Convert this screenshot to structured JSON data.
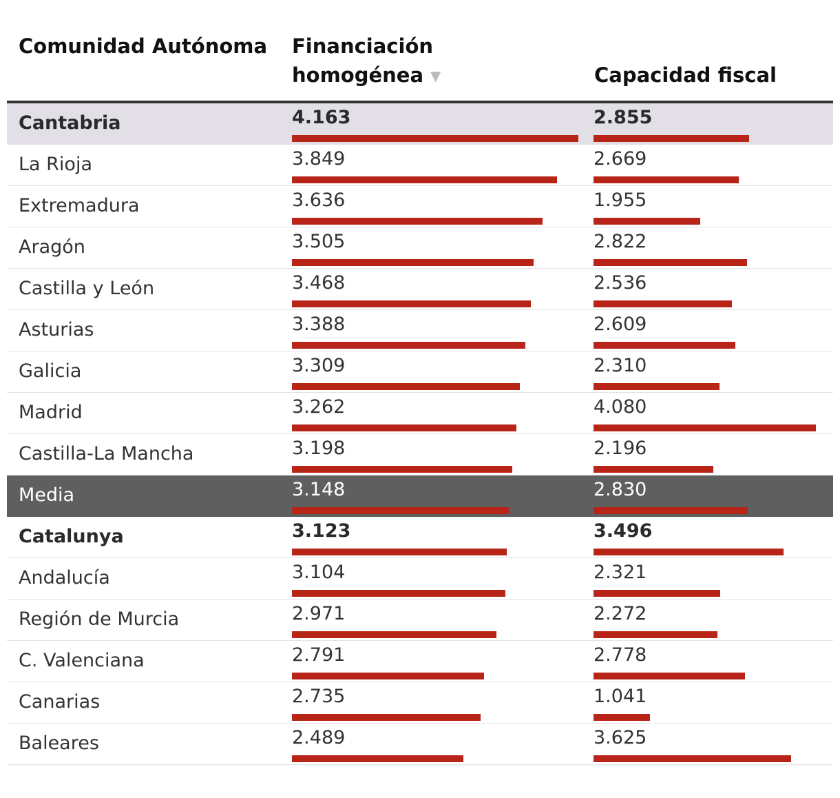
{
  "colors": {
    "bar": "#b82418",
    "highlight_row": "#e2e0e6",
    "media_row": "#5f5f5f"
  },
  "header": {
    "region_label": "Comunidad Autónoma",
    "financiacion_label": "Financiación homogénea",
    "sort_icon": "triangle-down-icon",
    "sort_glyph": "▼",
    "capacidad_label": "Capacidad fiscal"
  },
  "chart_data": {
    "type": "table",
    "columns": [
      "Comunidad Autónoma",
      "Financiación homogénea",
      "Capacidad fiscal"
    ],
    "scale_max": 4.3,
    "rows": [
      {
        "name": "Cantabria",
        "financiacion": 4.163,
        "financiacion_label": "4.163",
        "capacidad": 2.855,
        "capacidad_label": "2.855",
        "style": "highlight"
      },
      {
        "name": "La Rioja",
        "financiacion": 3.849,
        "financiacion_label": "3.849",
        "capacidad": 2.669,
        "capacidad_label": "2.669",
        "style": "normal"
      },
      {
        "name": "Extremadura",
        "financiacion": 3.636,
        "financiacion_label": "3.636",
        "capacidad": 1.955,
        "capacidad_label": "1.955",
        "style": "normal"
      },
      {
        "name": "Aragón",
        "financiacion": 3.505,
        "financiacion_label": "3.505",
        "capacidad": 2.822,
        "capacidad_label": "2.822",
        "style": "normal"
      },
      {
        "name": "Castilla y León",
        "financiacion": 3.468,
        "financiacion_label": "3.468",
        "capacidad": 2.536,
        "capacidad_label": "2.536",
        "style": "normal"
      },
      {
        "name": "Asturias",
        "financiacion": 3.388,
        "financiacion_label": "3.388",
        "capacidad": 2.609,
        "capacidad_label": "2.609",
        "style": "normal"
      },
      {
        "name": "Galicia",
        "financiacion": 3.309,
        "financiacion_label": "3.309",
        "capacidad": 2.31,
        "capacidad_label": "2.310",
        "style": "normal"
      },
      {
        "name": "Madrid",
        "financiacion": 3.262,
        "financiacion_label": "3.262",
        "capacidad": 4.08,
        "capacidad_label": "4.080",
        "style": "normal"
      },
      {
        "name": "Castilla-La Mancha",
        "financiacion": 3.198,
        "financiacion_label": "3.198",
        "capacidad": 2.196,
        "capacidad_label": "2.196",
        "style": "normal"
      },
      {
        "name": "Media",
        "financiacion": 3.148,
        "financiacion_label": "3.148",
        "capacidad": 2.83,
        "capacidad_label": "2.830",
        "style": "media"
      },
      {
        "name": "Catalunya",
        "financiacion": 3.123,
        "financiacion_label": "3.123",
        "capacidad": 3.496,
        "capacidad_label": "3.496",
        "style": "bold"
      },
      {
        "name": "Andalucía",
        "financiacion": 3.104,
        "financiacion_label": "3.104",
        "capacidad": 2.321,
        "capacidad_label": "2.321",
        "style": "normal"
      },
      {
        "name": "Región de Murcia",
        "financiacion": 2.971,
        "financiacion_label": "2.971",
        "capacidad": 2.272,
        "capacidad_label": "2.272",
        "style": "normal"
      },
      {
        "name": "C. Valenciana",
        "financiacion": 2.791,
        "financiacion_label": "2.791",
        "capacidad": 2.778,
        "capacidad_label": "2.778",
        "style": "normal"
      },
      {
        "name": "Canarias",
        "financiacion": 2.735,
        "financiacion_label": "2.735",
        "capacidad": 1.041,
        "capacidad_label": "1.041",
        "style": "normal"
      },
      {
        "name": "Baleares",
        "financiacion": 2.489,
        "financiacion_label": "2.489",
        "capacidad": 3.625,
        "capacidad_label": "3.625",
        "style": "normal"
      }
    ]
  }
}
